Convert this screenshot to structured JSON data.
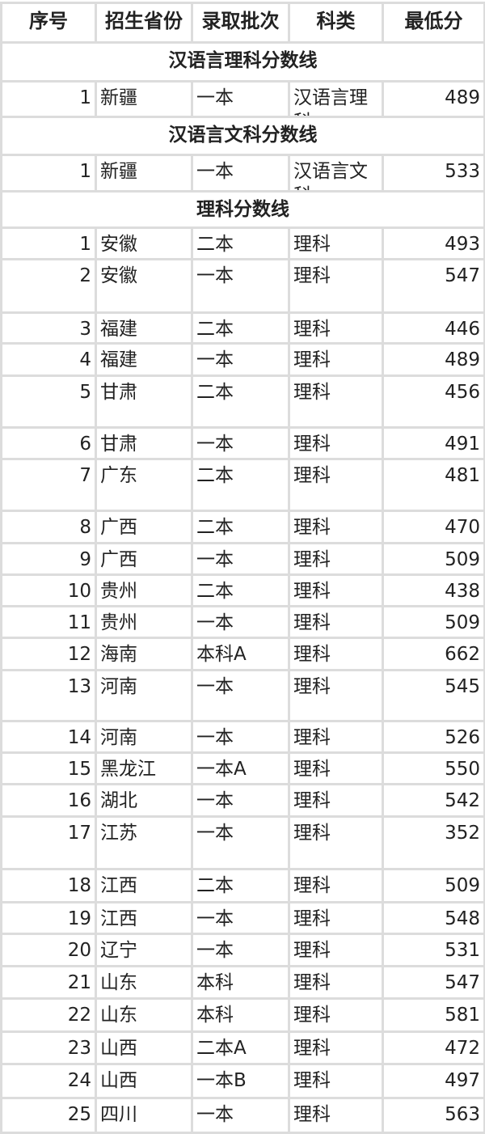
{
  "headers": [
    "序号",
    "招生省份",
    "录取批次",
    "科类",
    "最低分"
  ],
  "sections": [
    {
      "title": "汉语言理科分数线",
      "rows": [
        [
          "1",
          "新疆",
          "一本",
          "汉语言理科",
          "489"
        ]
      ]
    },
    {
      "title": "汉语言文科分数线",
      "rows": [
        [
          "1",
          "新疆",
          "一本",
          "汉语言文科",
          "533"
        ]
      ]
    },
    {
      "title": "理科分数线",
      "rows": [
        [
          "1",
          "安徽",
          "二本",
          "理科",
          "493"
        ],
        [
          "2",
          "安徽",
          "一本",
          "理科",
          "547"
        ],
        [
          "3",
          "福建",
          "二本",
          "理科",
          "446"
        ],
        [
          "4",
          "福建",
          "一本",
          "理科",
          "489"
        ],
        [
          "5",
          "甘肃",
          "二本",
          "理科",
          "456"
        ],
        [
          "6",
          "甘肃",
          "一本",
          "理科",
          "491"
        ],
        [
          "7",
          "广东",
          "二本",
          "理科",
          "481"
        ],
        [
          "8",
          "广西",
          "二本",
          "理科",
          "470"
        ],
        [
          "9",
          "广西",
          "一本",
          "理科",
          "509"
        ],
        [
          "10",
          "贵州",
          "二本",
          "理科",
          "438"
        ],
        [
          "11",
          "贵州",
          "一本",
          "理科",
          "509"
        ],
        [
          "12",
          "海南",
          "本科A",
          "理科",
          "662"
        ],
        [
          "13",
          "河南",
          "一本",
          "理科",
          "545"
        ],
        [
          "14",
          "河南",
          "一本",
          "理科",
          "526"
        ],
        [
          "15",
          "黑龙江",
          "一本A",
          "理科",
          "550"
        ],
        [
          "16",
          "湖北",
          "一本",
          "理科",
          "542"
        ],
        [
          "17",
          "江苏",
          "一本",
          "理科",
          "352"
        ],
        [
          "18",
          "江西",
          "二本",
          "理科",
          "509"
        ],
        [
          "19",
          "江西",
          "一本",
          "理科",
          "548"
        ],
        [
          "20",
          "辽宁",
          "一本",
          "理科",
          "531"
        ],
        [
          "21",
          "山东",
          "本科",
          "理科",
          "547"
        ],
        [
          "22",
          "山东",
          "本科",
          "理科",
          "581"
        ],
        [
          "23",
          "山西",
          "二本A",
          "理科",
          "472"
        ],
        [
          "24",
          "山西",
          "一本B",
          "理科",
          "497"
        ],
        [
          "25",
          "四川",
          "一本",
          "理科",
          "563"
        ]
      ]
    }
  ]
}
